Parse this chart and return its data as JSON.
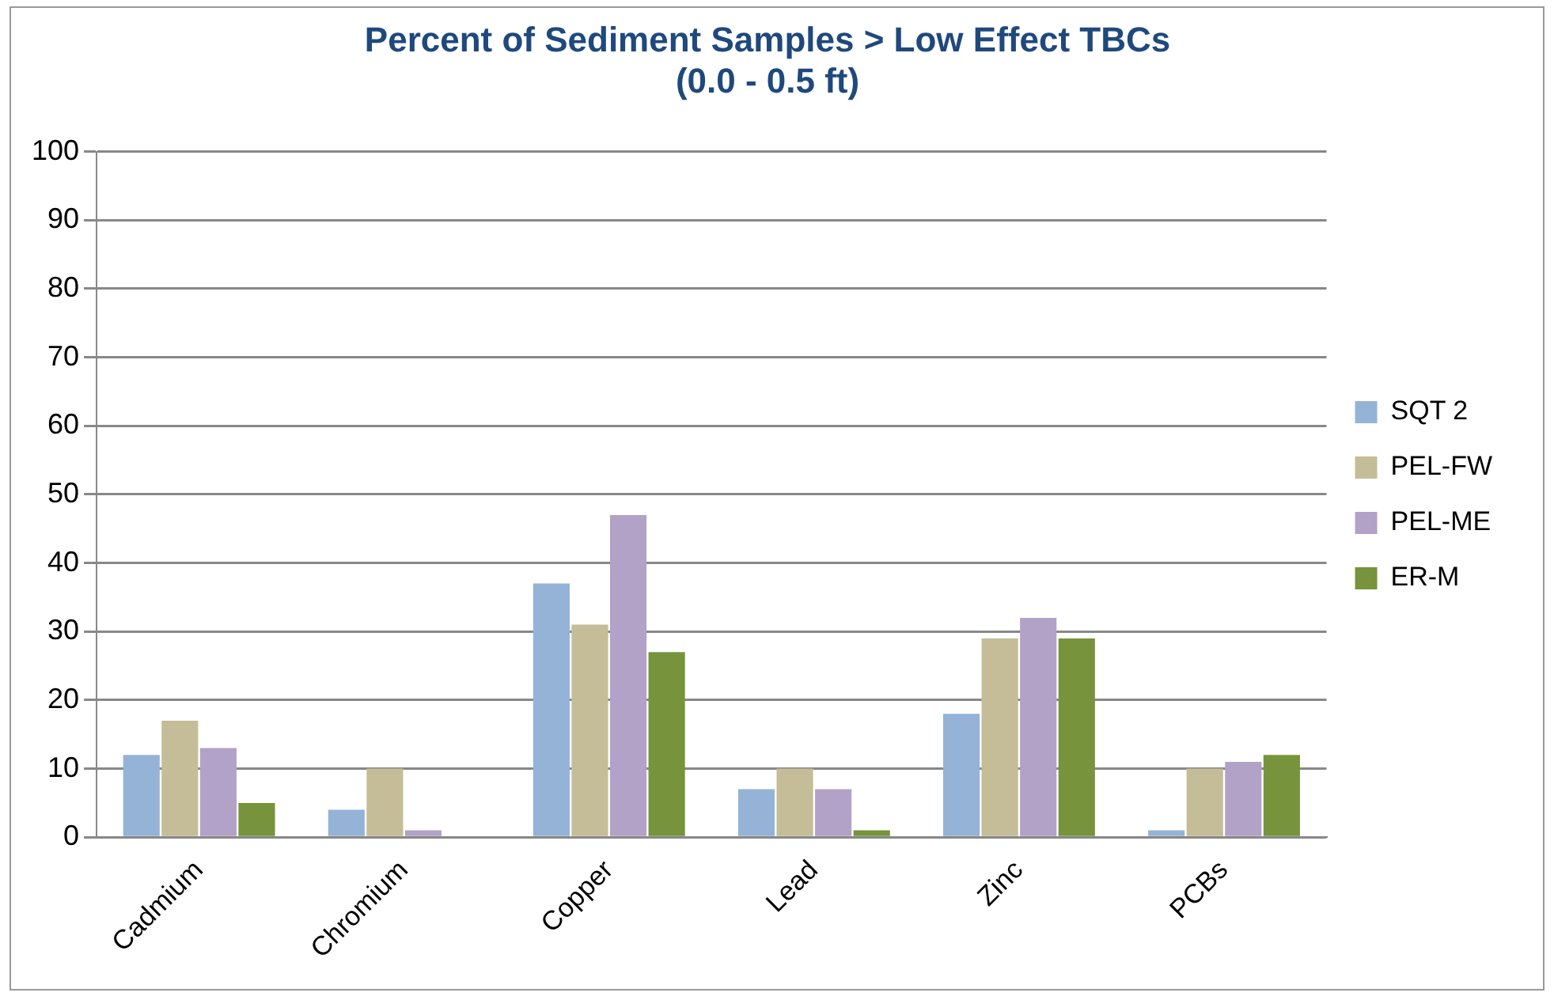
{
  "chart_data": {
    "type": "bar",
    "title": [
      "Percent of Sediment Samples > Low Effect TBCs",
      "(0.0 - 0.5 ft)"
    ],
    "categories": [
      "Cadmium",
      "Chromium",
      "Copper",
      "Lead",
      "Zinc",
      "PCBs"
    ],
    "series": [
      {
        "name": "SQT 2",
        "color": "#95b3d7",
        "values": [
          12,
          4,
          37,
          7,
          18,
          1
        ]
      },
      {
        "name": "PEL-FW",
        "color": "#c4bd97",
        "values": [
          17,
          10,
          31,
          10,
          29,
          10
        ]
      },
      {
        "name": "PEL-ME",
        "color": "#b3a2c7",
        "values": [
          13,
          1,
          47,
          7,
          32,
          11
        ]
      },
      {
        "name": "ER-M",
        "color": "#77933c",
        "values": [
          5,
          0,
          27,
          1,
          29,
          12
        ]
      }
    ],
    "ylim": [
      0,
      100
    ],
    "yticks": [
      0,
      10,
      20,
      30,
      40,
      50,
      60,
      70,
      80,
      90,
      100
    ],
    "grid": "y",
    "legend": "right"
  }
}
